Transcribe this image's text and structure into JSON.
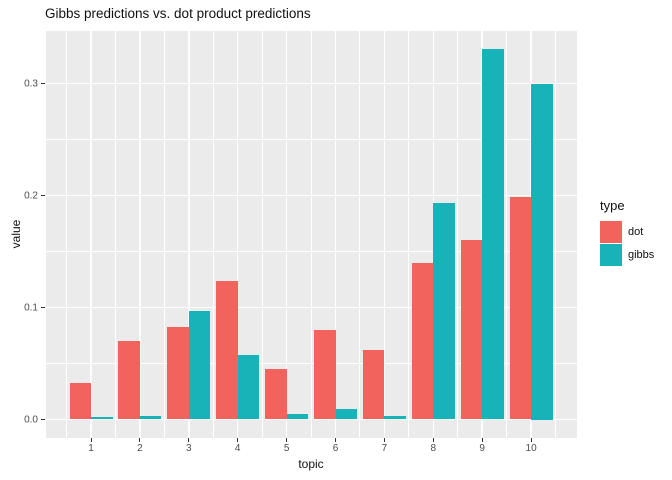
{
  "title": "Gibbs predictions vs. dot product predictions",
  "chart_data": {
    "type": "bar",
    "grouping": "dodged",
    "title": "Gibbs predictions vs. dot product predictions",
    "xlabel": "topic",
    "ylabel": "value",
    "categories": [
      "1",
      "2",
      "3",
      "4",
      "5",
      "6",
      "7",
      "8",
      "9",
      "10"
    ],
    "series": [
      {
        "name": "dot",
        "color": "#F2635E",
        "values": [
          0.033,
          0.07,
          0.083,
          0.124,
          0.045,
          0.08,
          0.062,
          0.14,
          0.16,
          0.199
        ]
      },
      {
        "name": "gibbs",
        "color": "#18B3B9",
        "values": [
          0.002,
          0.003,
          0.097,
          0.058,
          0.005,
          0.009,
          0.003,
          0.193,
          0.331,
          0.3
        ]
      }
    ],
    "yticks": [
      0,
      0.1,
      0.2,
      0.3
    ],
    "ytick_labels": [
      "0.0",
      "0.1",
      "0.2",
      "0.3"
    ],
    "minor_yticks": [
      0.05,
      0.15,
      0.25
    ],
    "ylim": [
      -0.015,
      0.345
    ],
    "grid": "major and minor, white lines on grey panel",
    "legend_position": "right",
    "panel_color": "#EBEBEB",
    "grid_color": "#FFFFFF",
    "tick_label_color": "#4D4D4D"
  },
  "legend": {
    "title": "type",
    "entries": [
      {
        "label": "dot",
        "color": "#F2635E"
      },
      {
        "label": "gibbs",
        "color": "#18B3B9"
      }
    ]
  }
}
